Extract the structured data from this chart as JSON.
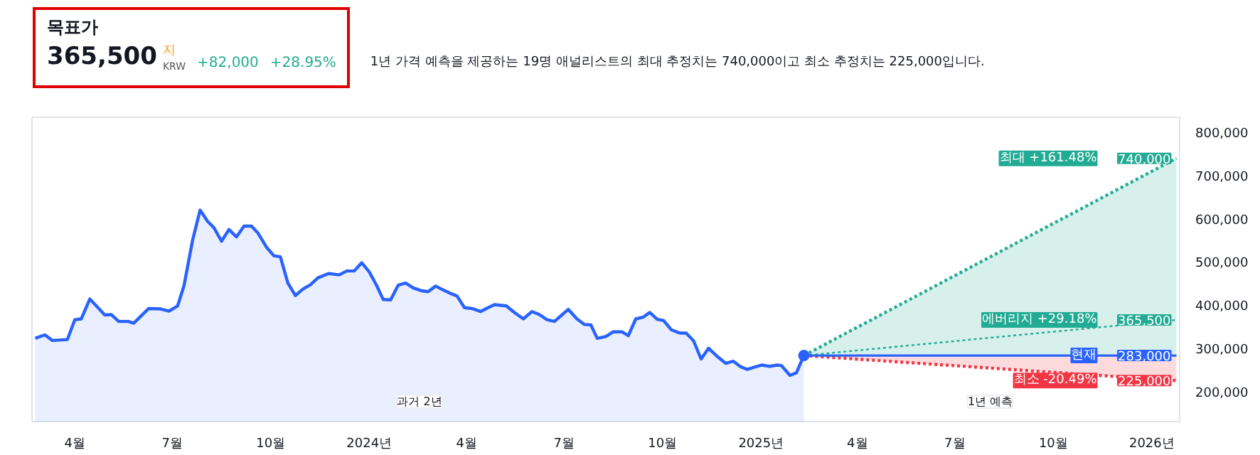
{
  "chart_data": {
    "type": "area",
    "title": "목표가",
    "subtitle": "365,500",
    "annotations": [
      "지",
      "KRW",
      "+82,000",
      "+28.95%",
      "1년 가격 예측을 제공하는 19명 애널리스트의 최대 추정치는 740,000이고 최소 추정치는 225,000입니다.",
      "과거 2년",
      "1년 예측"
    ],
    "legend": "right",
    "xlim": [
      "2023-02-20",
      "2026-01-27"
    ],
    "ylim": [
      130000,
      835000
    ],
    "xticks": [
      {
        "value": "2023-04-01",
        "label": "4월"
      },
      {
        "value": "2023-07-01",
        "label": "7월"
      },
      {
        "value": "2023-10-01",
        "label": "10월"
      },
      {
        "value": "2024-01-01",
        "label": "2024년"
      },
      {
        "value": "2024-04-01",
        "label": "4월"
      },
      {
        "value": "2024-07-01",
        "label": "7월"
      },
      {
        "value": "2024-10-01",
        "label": "10월"
      },
      {
        "value": "2025-01-01",
        "label": "2025년"
      },
      {
        "value": "2025-04-01",
        "label": "4월"
      },
      {
        "value": "2025-07-01",
        "label": "7월"
      },
      {
        "value": "2025-10-01",
        "label": "10월"
      },
      {
        "value": "2026-01-01",
        "label": "2026년"
      }
    ],
    "yticks": [
      {
        "value": 200000,
        "label": "200,000"
      },
      {
        "value": 300000,
        "label": "300,000"
      },
      {
        "value": 400000,
        "label": "400,000"
      },
      {
        "value": 500000,
        "label": "500,000"
      },
      {
        "value": 600000,
        "label": "600,000"
      },
      {
        "value": 700000,
        "label": "700,000"
      },
      {
        "value": 800000,
        "label": "800,000"
      }
    ],
    "series": [
      {
        "color": "#2962ff",
        "x": [
          "2023-02-23",
          "2023-03-04",
          "2023-03-11",
          "2023-03-25",
          "2023-04-01",
          "2023-04-07",
          "2023-04-15",
          "2023-04-29",
          "2023-05-05",
          "2023-05-12",
          "2023-05-21",
          "2023-05-26",
          "2023-06-09",
          "2023-06-20",
          "2023-06-28",
          "2023-07-06",
          "2023-07-12",
          "2023-07-20",
          "2023-07-27",
          "2023-08-03",
          "2023-08-09",
          "2023-08-16",
          "2023-08-23",
          "2023-08-30",
          "2023-09-06",
          "2023-09-13",
          "2023-09-19",
          "2023-09-27",
          "2023-10-04",
          "2023-10-10",
          "2023-10-17",
          "2023-10-24",
          "2023-10-31",
          "2023-11-07",
          "2023-11-14",
          "2023-11-24",
          "2023-12-04",
          "2023-12-11",
          "2023-12-18",
          "2023-12-25",
          "2024-01-01",
          "2024-01-08",
          "2024-01-14",
          "2024-01-21",
          "2024-01-28",
          "2024-02-04",
          "2024-02-11",
          "2024-02-19",
          "2024-02-25",
          "2024-03-03",
          "2024-03-10",
          "2024-03-16",
          "2024-03-23",
          "2024-03-30",
          "2024-04-06",
          "2024-04-14",
          "2024-04-21",
          "2024-04-27",
          "2024-05-08",
          "2024-05-16",
          "2024-05-24",
          "2024-06-01",
          "2024-06-08",
          "2024-06-15",
          "2024-06-22",
          "2024-06-28",
          "2024-07-05",
          "2024-07-13",
          "2024-07-20",
          "2024-07-26",
          "2024-08-01",
          "2024-08-09",
          "2024-08-16",
          "2024-08-24",
          "2024-08-30",
          "2024-09-06",
          "2024-09-13",
          "2024-09-19",
          "2024-09-26",
          "2024-10-02",
          "2024-10-09",
          "2024-10-17",
          "2024-10-23",
          "2024-10-30",
          "2024-11-06",
          "2024-11-13",
          "2024-11-22",
          "2024-11-29",
          "2024-12-06",
          "2024-12-13",
          "2024-12-19",
          "2024-12-27",
          "2025-01-02",
          "2025-01-09",
          "2025-01-16",
          "2025-01-20",
          "2025-01-28",
          "2025-02-03",
          "2025-02-10"
        ],
        "values": [
          323000,
          331000,
          318000,
          320000,
          366000,
          368000,
          414000,
          377000,
          378000,
          362000,
          362000,
          358000,
          392000,
          391000,
          386000,
          398000,
          445000,
          550000,
          620000,
          594000,
          579000,
          548000,
          575000,
          558000,
          583000,
          583000,
          567000,
          534000,
          514000,
          512000,
          451000,
          422000,
          437000,
          447000,
          463000,
          473000,
          470000,
          479000,
          479000,
          498000,
          477000,
          445000,
          413000,
          412000,
          446000,
          451000,
          440000,
          433000,
          431000,
          444000,
          435000,
          428000,
          421000,
          394000,
          392000,
          385000,
          394000,
          401000,
          398000,
          382000,
          368000,
          385000,
          378000,
          366000,
          362000,
          375000,
          390000,
          368000,
          355000,
          354000,
          323000,
          327000,
          338000,
          338000,
          329000,
          368000,
          372000,
          383000,
          367000,
          364000,
          343000,
          335000,
          335000,
          317000,
          275000,
          300000,
          279000,
          265000,
          270000,
          257000,
          251000,
          257000,
          261000,
          258000,
          261000,
          260000,
          237000,
          243000,
          283000
        ]
      },
      {
        "type": "area",
        "name": "최대 +161.48%",
        "color": "#22ab94",
        "line_style": "dotted",
        "x": [
          "2025-02-10",
          "2026-01-24"
        ],
        "values": [
          283000,
          740000
        ],
        "value_labels": [
          null,
          "740,000"
        ]
      },
      {
        "type": "line",
        "name": "에버리지 +29.18%",
        "color": "#22ab94",
        "line_style": "dotted",
        "x": [
          "2025-02-10",
          "2026-01-24"
        ],
        "values": [
          283000,
          365500
        ],
        "value_labels": [
          null,
          "365,500"
        ]
      },
      {
        "type": "area",
        "name": "최소 -20.49%",
        "color": "#f23645",
        "line_style": "dotted",
        "x": [
          "2025-02-10",
          "2026-01-24"
        ],
        "values": [
          283000,
          225000
        ],
        "value_labels": [
          null,
          "225,000"
        ]
      },
      {
        "type": "line",
        "name": "현재",
        "color": "#2962ff",
        "line_style": "solid",
        "x": [
          "2025-02-10",
          "2026-01-24"
        ],
        "values": [
          283000,
          283000
        ],
        "value_labels": [
          null,
          "283,000"
        ]
      },
      {
        "type": "scatter",
        "color": "#2962ff",
        "marker": "circle",
        "x": [
          "2025-02-10"
        ],
        "values": [
          283000
        ]
      }
    ]
  }
}
